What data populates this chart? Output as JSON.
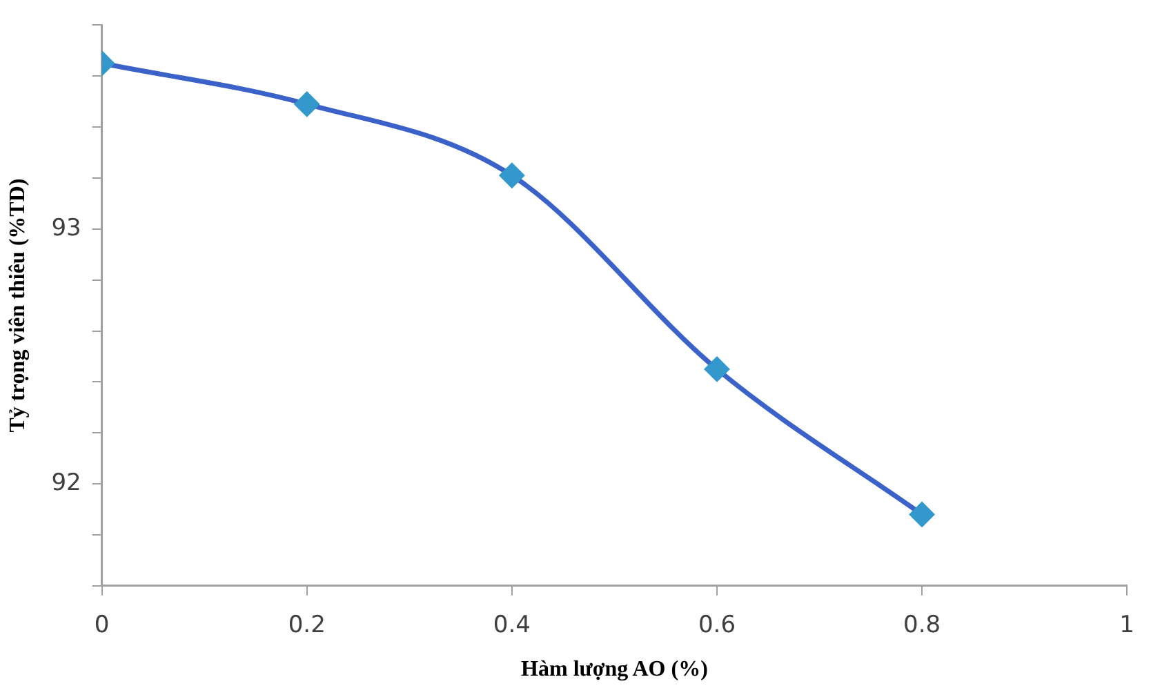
{
  "chart_data": {
    "type": "line",
    "xlabel": "Hàm lượng AO (%)",
    "ylabel": "Tỷ trọng viên thiêu (%TD)",
    "x": [
      0,
      0.2,
      0.4,
      0.6,
      0.8
    ],
    "series": [
      {
        "color": "#3a62c8",
        "values": [
          93.65,
          93.49,
          93.21,
          92.45,
          91.88
        ]
      }
    ],
    "xlim": [
      0,
      1
    ],
    "xticks": [
      0,
      0.2,
      0.4,
      0.6,
      0.8,
      1
    ],
    "ylim": [
      91.6,
      93.8
    ],
    "yticks": [
      {
        "value": 91.6,
        "label": null
      },
      {
        "value": 91.8,
        "label": null
      },
      92,
      {
        "value": 92.2,
        "label": null
      },
      {
        "value": 92.4,
        "label": null
      },
      {
        "value": 92.6,
        "label": null
      },
      {
        "value": 92.8,
        "label": null
      },
      93,
      {
        "value": 93.2,
        "label": null
      },
      {
        "value": 93.4,
        "label": null
      },
      {
        "value": 93.6,
        "label": null
      },
      {
        "value": 93.8,
        "label": null
      }
    ],
    "marker": "diamond",
    "grid": false,
    "legend": false
  }
}
